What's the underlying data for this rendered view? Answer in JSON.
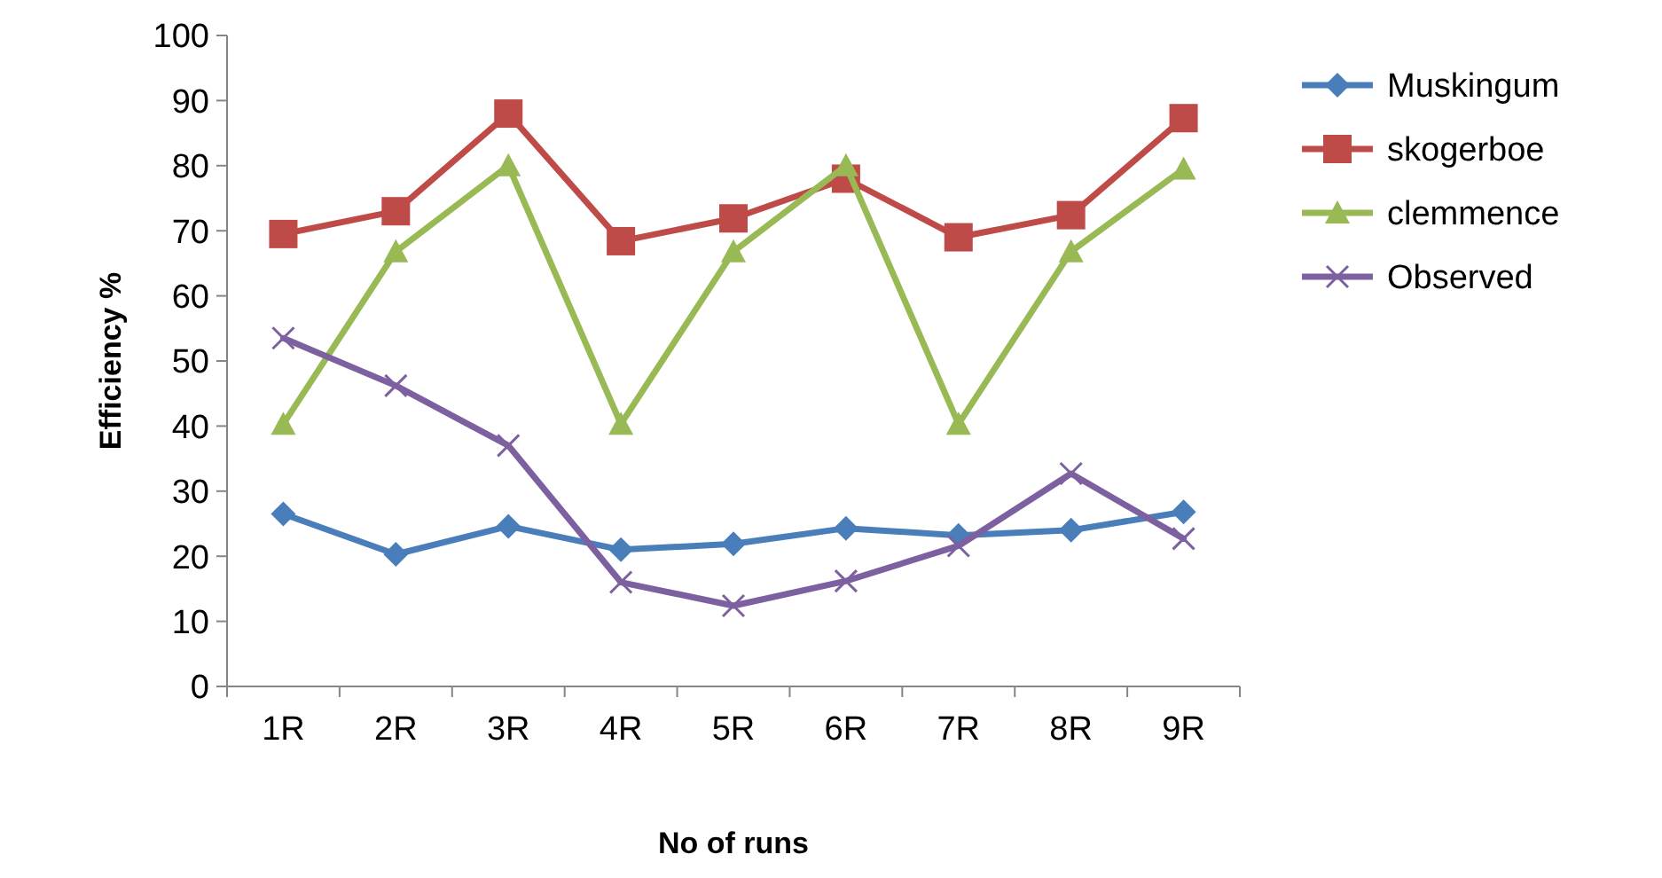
{
  "chart_data": {
    "type": "line",
    "xlabel": "No of runs",
    "ylabel": "Efficiency %",
    "categories": [
      "1R",
      "2R",
      "3R",
      "4R",
      "5R",
      "6R",
      "7R",
      "8R",
      "9R"
    ],
    "ylim": [
      0,
      100
    ],
    "yticks": [
      0,
      10,
      20,
      30,
      40,
      50,
      60,
      70,
      80,
      90,
      100
    ],
    "grid": false,
    "legend": "right",
    "line_style": "solid",
    "series": [
      {
        "name": "Muskingum",
        "color": "#4a7ebb",
        "marker": "diamond",
        "values": [
          26.5,
          20.3,
          24.6,
          21,
          21.9,
          24.3,
          23.2,
          24,
          26.8
        ]
      },
      {
        "name": "skogerboe",
        "color": "#be4b48",
        "marker": "square",
        "values": [
          69.5,
          73,
          88,
          68.4,
          71.9,
          78,
          69,
          72.4,
          87.3
        ]
      },
      {
        "name": "clemmence",
        "color": "#98b954",
        "marker": "triangle",
        "values": [
          40.3,
          66.8,
          80,
          40.3,
          66.8,
          80,
          40.3,
          66.8,
          79.5
        ]
      },
      {
        "name": "Observed",
        "color": "#7d60a0",
        "marker": "cross",
        "values": [
          53.5,
          46.2,
          37,
          16,
          12.4,
          16.2,
          21.6,
          32.7,
          22.7
        ]
      }
    ]
  }
}
